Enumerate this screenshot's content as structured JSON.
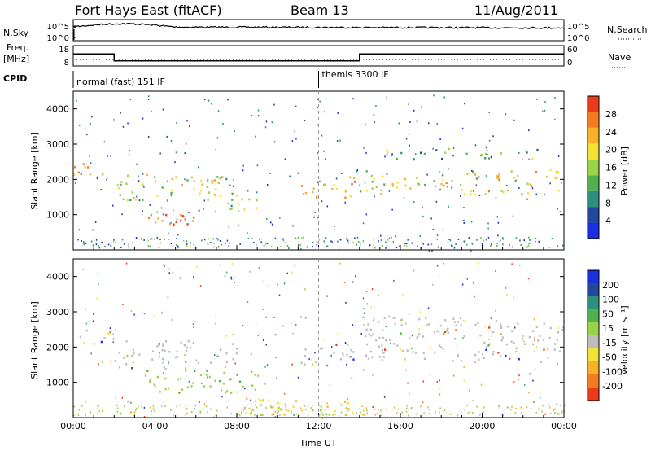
{
  "header": {
    "station": "Fort Hays East (fitACF)",
    "beam": "Beam 13",
    "date": "11/Aug/2011"
  },
  "side_labels": {
    "nsky": "N.Sky",
    "nsearch": "N.Search",
    "freq_1": "Freq.",
    "freq_2": "[MHz]",
    "nave": "Nave",
    "cpid": "CPID"
  },
  "cpid_segments": [
    {
      "label": "normal (fast) 151 IF",
      "start_hour": 0
    },
    {
      "label": "themis 3300 IF",
      "start_hour": 12
    }
  ],
  "chart_data": [
    {
      "type": "line",
      "name": "noise-panel",
      "left_ticks": [
        "10^5",
        "10^0"
      ],
      "right_ticks": [
        "10^5",
        "10^0"
      ],
      "left_label": "N.Sky",
      "right_label": "N.Search"
    },
    {
      "type": "line",
      "name": "frequency-panel",
      "left_ticks": [
        18,
        8
      ],
      "right_ticks": [
        60,
        0
      ],
      "freq_mhz": [
        {
          "start_hour": 0,
          "end_hour": 2,
          "value": 15
        },
        {
          "start_hour": 2,
          "end_hour": 14,
          "value": 11
        },
        {
          "start_hour": 14,
          "end_hour": 24,
          "value": 15
        }
      ]
    },
    {
      "type": "heatmap",
      "name": "power-panel",
      "ylabel": "Slant Range [km]",
      "yticks": [
        1000,
        2000,
        3000,
        4000
      ],
      "ylim": [
        0,
        4500
      ],
      "xlim": [
        0,
        24
      ],
      "colorbar_label": "Power [dB]",
      "colorbar_ticks": [
        "4",
        "8",
        "12",
        "16",
        "20",
        "24",
        "28"
      ],
      "colorbar_colors": [
        "#1b2fe0",
        "#23479b",
        "#2f8f7f",
        "#51b04f",
        "#9ad34a",
        "#f1e235",
        "#f7b12a",
        "#f47c1f",
        "#ec3a1c"
      ],
      "regions": [
        {
          "x0": 0,
          "x1": 2,
          "y0": 2100,
          "y1": 2500,
          "level": 0.7
        },
        {
          "x0": 0.6,
          "x1": 0.9,
          "y0": 3600,
          "y1": 3900,
          "level": 0.3
        },
        {
          "x0": 2,
          "x1": 8,
          "y0": 1400,
          "y1": 2200,
          "level": 0.55
        },
        {
          "x0": 3.5,
          "x1": 6.5,
          "y0": 700,
          "y1": 1200,
          "level": 0.85
        },
        {
          "x0": 6,
          "x1": 9,
          "y0": 1100,
          "y1": 1500,
          "level": 0.45
        },
        {
          "x0": 11,
          "x1": 14,
          "y0": 1500,
          "y1": 2100,
          "level": 0.7
        },
        {
          "x0": 14,
          "x1": 24,
          "y0": 1600,
          "y1": 2300,
          "level": 0.6
        },
        {
          "x0": 15,
          "x1": 23,
          "y0": 2600,
          "y1": 2900,
          "level": 0.4
        }
      ]
    },
    {
      "type": "heatmap",
      "name": "velocity-panel",
      "ylabel": "Slant Range [km]",
      "yticks": [
        1000,
        2000,
        3000,
        4000
      ],
      "ylim": [
        0,
        4500
      ],
      "xlim": [
        0,
        24
      ],
      "xticks": [
        "00:00",
        "04:00",
        "08:00",
        "12:00",
        "16:00",
        "20:00",
        "00:00"
      ],
      "xlabel": "Time UT",
      "colorbar_label": "Velocity [m s⁻¹]",
      "colorbar_ticks": [
        "200",
        "100",
        "50",
        "15",
        "-15",
        "-50",
        "-100",
        "-200"
      ],
      "colorbar_colors": [
        "#1b2fe0",
        "#23479b",
        "#2f8f7f",
        "#51b04f",
        "#9ad34a",
        "#bdbdbd",
        "#f1e235",
        "#f7b12a",
        "#f47c1f",
        "#ec3a1c"
      ],
      "regions": [
        {
          "x0": 0,
          "x1": 2,
          "y0": 2100,
          "y1": 2500,
          "level": 0
        },
        {
          "x0": 2,
          "x1": 8,
          "y0": 1400,
          "y1": 2200,
          "level": 0
        },
        {
          "x0": 3.5,
          "x1": 9,
          "y0": 700,
          "y1": 1400,
          "level": 1
        },
        {
          "x0": 11,
          "x1": 14,
          "y0": 1500,
          "y1": 2100,
          "level": 0
        },
        {
          "x0": 14,
          "x1": 24,
          "y0": 1600,
          "y1": 2900,
          "level": 0
        },
        {
          "x0": 8,
          "x1": 14,
          "y0": 100,
          "y1": 600,
          "level": -1
        }
      ]
    }
  ]
}
